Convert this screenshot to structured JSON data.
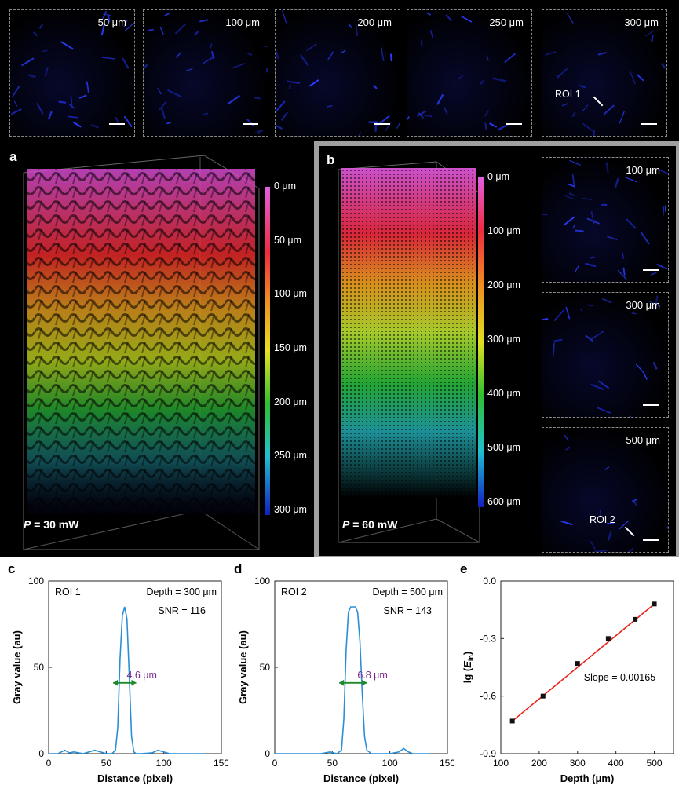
{
  "top_row": {
    "tiles": [
      {
        "label": "50 μm"
      },
      {
        "label": "100 μm"
      },
      {
        "label": "200 μm"
      },
      {
        "label": "250 μm"
      },
      {
        "label": "300 μm"
      }
    ],
    "roi_label": "ROI 1"
  },
  "panel_a": {
    "letter": "a",
    "power_symbol": "P",
    "power_value": " = 30 mW",
    "colorbar_ticks": [
      "0 μm",
      "50 μm",
      "100 μm",
      "150 μm",
      "200 μm",
      "250 μm",
      "300 μm"
    ]
  },
  "panel_b": {
    "letter": "b",
    "power_symbol": "P",
    "power_value": " = 60 mW",
    "colorbar_ticks": [
      "0 μm",
      "100 μm",
      "200 μm",
      "300 μm",
      "400 μm",
      "500 μm",
      "600 μm"
    ],
    "tiles": [
      {
        "label": "100 μm"
      },
      {
        "label": "300 μm"
      },
      {
        "label": "500 μm"
      }
    ],
    "roi_label": "ROI 2"
  },
  "chart_data": [
    {
      "panel": "c",
      "type": "line",
      "xlabel": "Distance (pixel)",
      "ylabel": "Gray value (au)",
      "xlim": [
        0,
        150
      ],
      "ylim": [
        0,
        100
      ],
      "xticks": [
        0,
        50,
        100,
        150
      ],
      "yticks": [
        0,
        50,
        100
      ],
      "annotations": {
        "roi": "ROI 1",
        "depth": "Depth = 300 μm",
        "snr": "SNR = 116",
        "fwhm": "4.6 μm"
      },
      "fwhm_at": {
        "x_start": 56,
        "x_end": 76,
        "y": 41
      },
      "series": [
        {
          "x": [
            0,
            8,
            14,
            18,
            22,
            30,
            40,
            45,
            50,
            55,
            58,
            60,
            62,
            64,
            66,
            68,
            70,
            72,
            74,
            76,
            80,
            90,
            95,
            100,
            105,
            115,
            125,
            135
          ],
          "y": [
            0,
            0,
            2,
            0.5,
            1,
            0,
            2,
            1,
            0,
            0,
            2,
            15,
            55,
            80,
            85,
            78,
            45,
            10,
            1,
            0,
            0,
            0.5,
            2,
            1,
            0,
            0,
            0,
            0
          ]
        }
      ]
    },
    {
      "panel": "d",
      "type": "line",
      "xlabel": "Distance (pixel)",
      "ylabel": "Gray value (au)",
      "xlim": [
        0,
        150
      ],
      "ylim": [
        0,
        100
      ],
      "xticks": [
        0,
        50,
        100,
        150
      ],
      "yticks": [
        0,
        50,
        100
      ],
      "annotations": {
        "roi": "ROI 2",
        "depth": "Depth = 500 μm",
        "snr": "SNR = 143",
        "fwhm": "6.8 μm"
      },
      "fwhm_at": {
        "x_start": 56,
        "x_end": 80,
        "y": 41
      },
      "series": [
        {
          "x": [
            0,
            20,
            40,
            48,
            54,
            58,
            60,
            62,
            64,
            66,
            70,
            72,
            74,
            76,
            78,
            80,
            84,
            100,
            108,
            112,
            116,
            120,
            128,
            135
          ],
          "y": [
            0,
            0,
            0,
            1,
            0,
            2,
            20,
            60,
            82,
            85,
            85,
            82,
            65,
            35,
            10,
            2,
            0,
            0,
            1,
            3,
            1,
            0,
            0,
            0
          ]
        }
      ]
    },
    {
      "panel": "e",
      "type": "scatter",
      "xlabel": "Depth (μm)",
      "ylabel_main": "lg (",
      "ylabel_sym": "E",
      "ylabel_sub": "in",
      "ylabel_end": ")",
      "xlim": [
        100,
        550
      ],
      "ylim": [
        -0.9,
        0.0
      ],
      "xticks": [
        100,
        200,
        300,
        400,
        500
      ],
      "yticks": [
        0.0,
        -0.3,
        -0.6,
        -0.9
      ],
      "ytick_labels": [
        "0.0",
        "-0.3",
        "-0.6",
        "-0.9"
      ],
      "annotations": {
        "slope": "Slope = 0.00165"
      },
      "points": {
        "x": [
          130,
          210,
          300,
          380,
          450,
          500
        ],
        "y": [
          -0.73,
          -0.6,
          -0.43,
          -0.3,
          -0.2,
          -0.12
        ]
      },
      "fit": {
        "x": [
          130,
          500
        ],
        "y": [
          -0.73,
          -0.12
        ]
      },
      "colors": {
        "points": "#111111",
        "fit": "#e8231a"
      }
    }
  ],
  "colors": {
    "curve": "#2b8fd6",
    "arrow": "#1e8a2a",
    "fwhm_text": "#7b2a8c"
  }
}
